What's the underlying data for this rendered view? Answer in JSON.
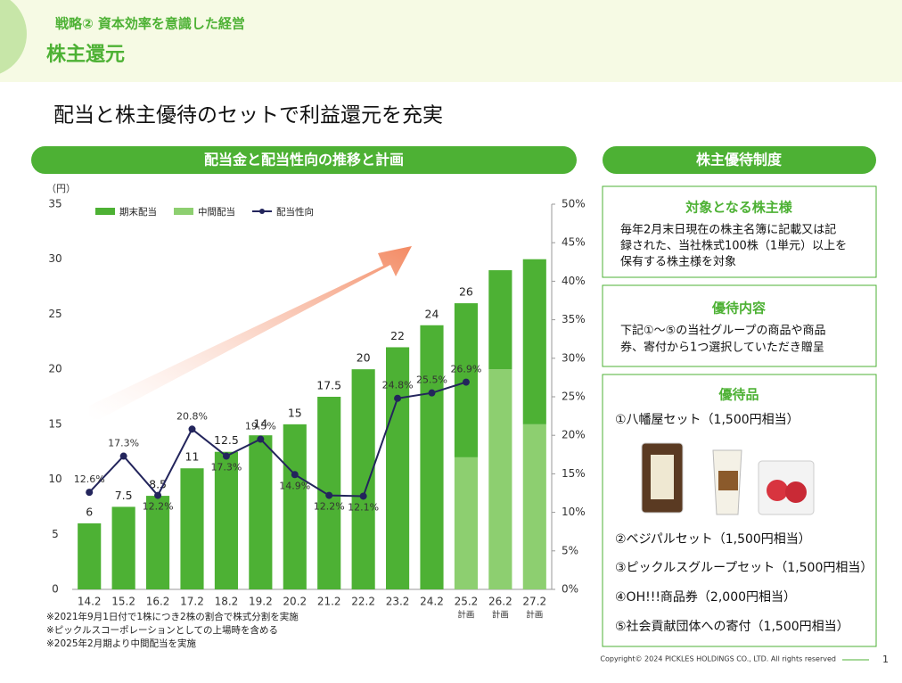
{
  "header": {
    "strategy": "戦略② 資本効率を意識した経営",
    "title": "株主還元"
  },
  "headline": "配当と株主優待のセットで利益還元を充実",
  "chart_data": {
    "type": "bar",
    "title": "配当金と配当性向の推移と計画",
    "y_label": "（円）",
    "categories": [
      "14.2",
      "15.2",
      "16.2",
      "17.2",
      "18.2",
      "19.2",
      "20.2",
      "21.2",
      "22.2",
      "23.2",
      "24.2",
      "25.2",
      "26.2",
      "27.2"
    ],
    "category_notes": [
      null,
      null,
      null,
      null,
      null,
      null,
      null,
      null,
      null,
      null,
      null,
      "計画",
      "計画",
      "計画"
    ],
    "series": [
      {
        "name": "期末配当",
        "color": "#4db134",
        "values": [
          6,
          7.5,
          8.5,
          11,
          12.5,
          14,
          15,
          17.5,
          20,
          22,
          24,
          14,
          9,
          15
        ]
      },
      {
        "name": "中間配当",
        "color": "#8dcf70",
        "values": [
          null,
          null,
          null,
          null,
          null,
          null,
          null,
          null,
          null,
          null,
          null,
          12,
          20,
          15
        ]
      },
      {
        "name": "配当性向",
        "color": "#23255c",
        "type": "line",
        "axis": "y2",
        "values": [
          12.6,
          17.3,
          12.2,
          20.8,
          17.3,
          19.5,
          14.9,
          12.2,
          12.1,
          24.8,
          25.5,
          26.9,
          null,
          null
        ],
        "value_labels": [
          "12.6%",
          "17.3%",
          "12.2%",
          "20.8%",
          "17.3%",
          "19.5%",
          "14.9%",
          "12.2%",
          "12.1%",
          "24.8%",
          "25.5%",
          "26.9%",
          null,
          null
        ]
      }
    ],
    "totals": [
      6,
      7.5,
      8.5,
      11,
      12.5,
      14,
      15,
      17.5,
      20,
      22,
      24,
      26,
      null,
      null
    ],
    "ylim": [
      0,
      35
    ],
    "yticks": [
      0,
      5,
      10,
      15,
      20,
      25,
      30,
      35
    ],
    "y2lim": [
      0,
      50
    ],
    "y2ticks": [
      {
        "value": 0,
        "label": "0%"
      },
      {
        "value": 5,
        "label": "5%"
      },
      {
        "value": 10,
        "label": "10%"
      },
      {
        "value": 15,
        "label": "15%"
      },
      {
        "value": 20,
        "label": "20%"
      },
      {
        "value": 25,
        "label": "25%"
      },
      {
        "value": 30,
        "label": "30%"
      },
      {
        "value": 35,
        "label": "35%"
      },
      {
        "value": 40,
        "label": "40%"
      },
      {
        "value": 45,
        "label": "45%"
      },
      {
        "value": 50,
        "label": "50%"
      }
    ],
    "notes": [
      "※2021年9月1日付で1株につき2株の割合で株式分割を実施",
      "※ピックルスコーポレーションとしての上場時を含める",
      "※2025年2月期より中間配当を実施"
    ]
  },
  "benefits": {
    "title": "株主優待制度",
    "eligible": {
      "heading": "対象となる株主様",
      "lines": [
        "毎年2月末日現在の株主名簿に記載又は記",
        "録された、当社株式100株（1単元）以上を",
        "保有する株主様を対象"
      ]
    },
    "content": {
      "heading": "優待内容",
      "lines": [
        "下記①～⑤の当社グループの商品や商品",
        "券、寄付から1つ選択していただき贈呈"
      ]
    },
    "items": {
      "heading": "優待品",
      "list": [
        "①八幡屋セット（1,500円相当）",
        "②ベジパルセット（1,500円相当）",
        "③ピックルスグループセット（1,500円相当）",
        "④OH!!!商品券（2,000円相当）",
        "⑤社会貢献団体への寄付（1,500円相当）"
      ]
    }
  },
  "footer": {
    "copyright": "Copyright© 2024 PICKLES HOLDINGS CO., LTD. All rights reserved",
    "page": "1"
  }
}
